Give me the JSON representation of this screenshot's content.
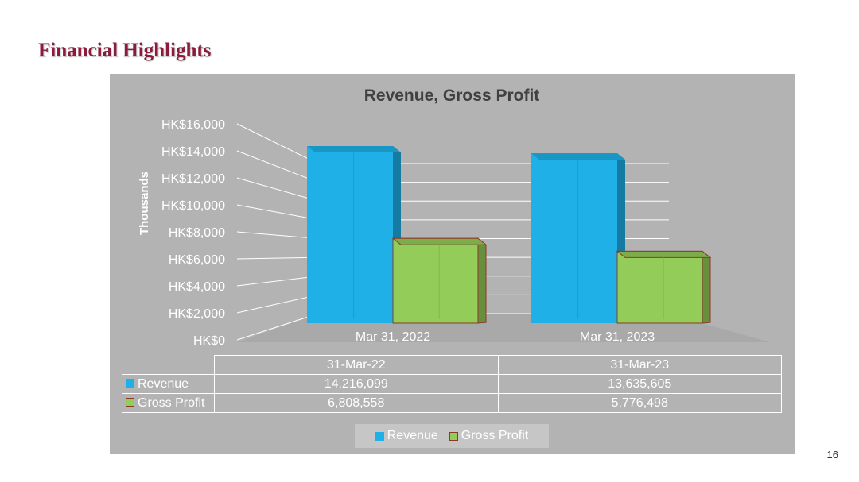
{
  "slide": {
    "title": "Financial Highlights",
    "page_number": "16"
  },
  "colors": {
    "revenue": "#1fb0e8",
    "gross_profit": "#93cc58",
    "gross_profit_border": "#8b3a2a"
  },
  "chart_data": {
    "type": "bar",
    "title": "Revenue, Gross Profit",
    "ylabel": "Thousands",
    "ylim": [
      0,
      16000
    ],
    "yticks": [
      0,
      2000,
      4000,
      6000,
      8000,
      10000,
      12000,
      14000,
      16000
    ],
    "ytick_labels": [
      "HK$0",
      "HK$2,000",
      "HK$4,000",
      "HK$6,000",
      "HK$8,000",
      "HK$10,000",
      "HK$12,000",
      "HK$14,000",
      "HK$16,000"
    ],
    "categories": [
      "Mar 31, 2022",
      "Mar 31, 2023"
    ],
    "series": [
      {
        "name": "Revenue",
        "values": [
          14216.099,
          13635.605
        ]
      },
      {
        "name": "Gross Profit",
        "values": [
          6808.558,
          5776.498
        ]
      }
    ],
    "legend": "bottom",
    "grid": true
  },
  "data_table": {
    "columns": [
      "31-Mar-22",
      "31-Mar-23"
    ],
    "rows": [
      {
        "label": "Revenue",
        "values": [
          "14,216,099",
          "13,635,605"
        ]
      },
      {
        "label": "Gross Profit",
        "values": [
          "6,808,558",
          "5,776,498"
        ]
      }
    ]
  }
}
